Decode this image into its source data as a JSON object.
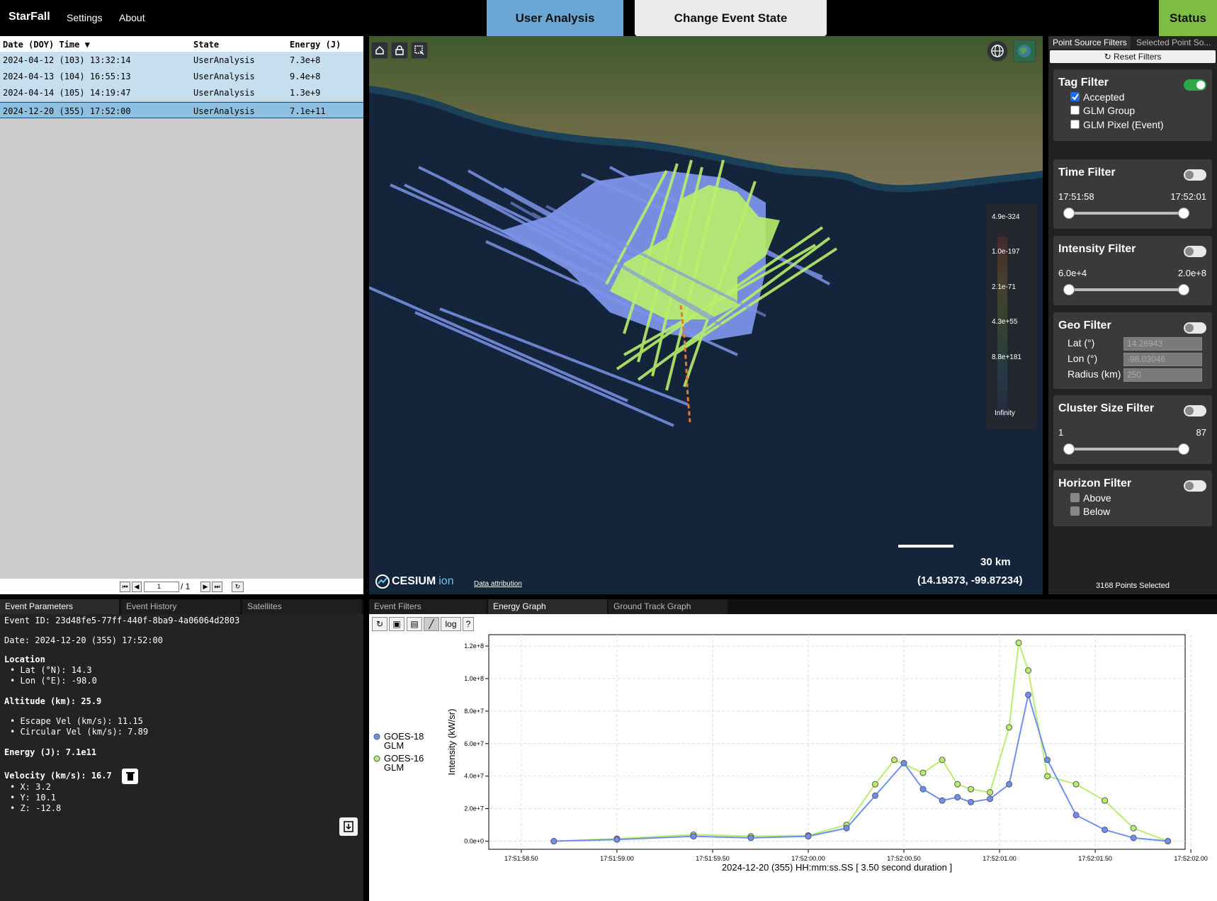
{
  "app": {
    "brand": "StarFall",
    "nav_settings": "Settings",
    "nav_about": "About"
  },
  "top_buttons": {
    "user_analysis": "User Analysis",
    "change_event_state": "Change Event State",
    "status": "Status"
  },
  "colors": {
    "user_analysis_bg": "#6aa7d5",
    "change_state_bg": "#ebebed",
    "status_bg": "#7dbd45",
    "row_bg": "#c6dfee",
    "selected_row_bg": "#8ec0e2",
    "glm18": "#6f8ff0",
    "glm16": "#b8ee6a"
  },
  "table": {
    "headers": {
      "date": "Date (DOY) Time",
      "state": "State",
      "energy": "Energy (J)"
    },
    "rows": [
      {
        "date": "2024-04-12 (103) 13:32:14",
        "state": "UserAnalysis",
        "energy": "7.3e+8"
      },
      {
        "date": "2024-04-13 (104) 16:55:13",
        "state": "UserAnalysis",
        "energy": "9.4e+8"
      },
      {
        "date": "2024-04-14 (105) 14:19:47",
        "state": "UserAnalysis",
        "energy": "1.3e+9"
      },
      {
        "date": "2024-12-20 (355) 17:52:00",
        "state": "UserAnalysis",
        "energy": "7.1e+11"
      }
    ],
    "pager": {
      "page": "1",
      "total": "/ 1"
    }
  },
  "map": {
    "legend": [
      "4.9e-324",
      "1.0e-197",
      "2.1e-71",
      "4.3e+55",
      "8.8e+181",
      "Infinity"
    ],
    "scale": "30 km",
    "coords": "(14.19373, -99.87234)",
    "cesium": "CESIUM",
    "cesium_ion": "ion",
    "attribution": "Data attribution"
  },
  "filters": {
    "tabs": [
      "Point Source Filters",
      "Selected Point So..."
    ],
    "reset": "Reset Filters",
    "tag": {
      "title": "Tag Filter",
      "enabled": true,
      "options": [
        {
          "label": "Accepted",
          "checked": true
        },
        {
          "label": "GLM Group",
          "checked": false
        },
        {
          "label": "GLM Pixel (Event)",
          "checked": false
        }
      ]
    },
    "time": {
      "title": "Time Filter",
      "min": "17:51:58",
      "max": "17:52:01"
    },
    "intensity": {
      "title": "Intensity Filter",
      "min": "6.0e+4",
      "max": "2.0e+8"
    },
    "geo": {
      "title": "Geo Filter",
      "lat_label": "Lat (°)",
      "lat": "14.26943",
      "lon_label": "Lon (°)",
      "lon": "-98.03046",
      "radius_label": "Radius (km)",
      "radius": "250"
    },
    "cluster": {
      "title": "Cluster Size Filter",
      "min": "1",
      "max": "87"
    },
    "horizon": {
      "title": "Horizon Filter",
      "above": "Above",
      "below": "Below"
    },
    "points_selected": "3168 Points Selected"
  },
  "bottom_tabs_left": [
    "Event Parameters",
    "Event History",
    "Satellites"
  ],
  "bottom_tabs_right": [
    "Event Filters",
    "Energy Graph",
    "Ground Track Graph"
  ],
  "params": {
    "event_id": "Event ID: 23d48fe5-77ff-440f-8ba9-4a06064d2803",
    "date": "Date: 2024-12-20 (355) 17:52:00",
    "location": "Location",
    "lat": "• Lat (°N): 14.3",
    "lon": "• Lon (°E): -98.0",
    "altitude": "Altitude (km): 25.9",
    "escape": "• Escape Vel (km/s): 11.15",
    "circular": "• Circular Vel (km/s): 7.89",
    "energy": "Energy (J): 7.1e11",
    "velocity": "Velocity (km/s): 16.7",
    "vx": "• X: 3.2",
    "vy": "• Y: 10.1",
    "vz": "• Z: -12.8"
  },
  "graph_toolbar": {
    "log": "log",
    "help": "?"
  },
  "chart_data": {
    "type": "line",
    "ylabel": "Intensity (kW/sr)",
    "xlabel": "2024-12-20 (355) HH:mm:ss.SS [ 3.50 second duration ]",
    "xticks": [
      "17:51:58.50",
      "17:51:59.00",
      "17:51:59.50",
      "17:52:00.00",
      "17:52:00.50",
      "17:52:01.00",
      "17:52:01.50",
      "17:52:02.00"
    ],
    "yticks": [
      "0.0e+0",
      "2.0e+7",
      "4.0e+7",
      "6.0e+7",
      "8.0e+7",
      "1.0e+8",
      "1.2e+8"
    ],
    "xlim": [
      -0.17,
      3.47
    ],
    "ylim": [
      -5000000,
      127000000
    ],
    "x_unit": "seconds after 17:51:58.50",
    "series": [
      {
        "name": "GOES-18 GLM",
        "color": "#6f8ff0",
        "x": [
          0.17,
          0.5,
          0.9,
          1.2,
          1.5,
          1.7,
          1.85,
          2.0,
          2.1,
          2.2,
          2.28,
          2.35,
          2.45,
          2.55,
          2.65,
          2.75,
          2.9,
          3.05,
          3.2,
          3.38
        ],
        "y": [
          0,
          1000000,
          3000000,
          2000000,
          3000000,
          8000000,
          28000000,
          48000000,
          32000000,
          25000000,
          27000000,
          24000000,
          26000000,
          35000000,
          90000000,
          50000000,
          16000000,
          7000000,
          2000000,
          0
        ]
      },
      {
        "name": "GOES-16 GLM",
        "color": "#b8ee6a",
        "x": [
          0.17,
          0.5,
          0.9,
          1.2,
          1.5,
          1.7,
          1.85,
          1.95,
          2.1,
          2.2,
          2.28,
          2.35,
          2.45,
          2.55,
          2.6,
          2.65,
          2.75,
          2.9,
          3.05,
          3.2,
          3.38
        ],
        "y": [
          0,
          1500000,
          4000000,
          3000000,
          3500000,
          10000000,
          35000000,
          50000000,
          42000000,
          50000000,
          35000000,
          32000000,
          30000000,
          70000000,
          122000000,
          105000000,
          40000000,
          35000000,
          25000000,
          8000000,
          0
        ]
      }
    ]
  }
}
